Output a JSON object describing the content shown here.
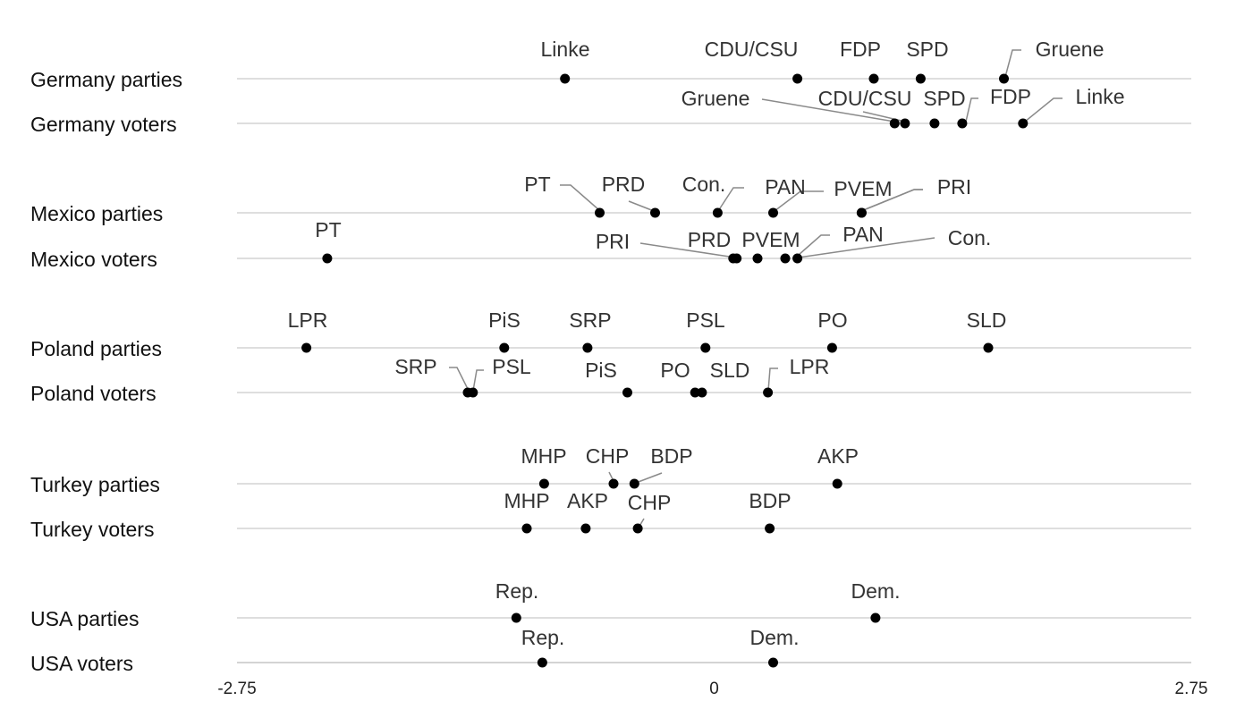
{
  "colors": {
    "line": "#d3d3d3",
    "point": "#000000",
    "leader": "#8a8a8a"
  },
  "chart_data": {
    "type": "scatter",
    "title": "",
    "xlabel": "",
    "ylabel": "",
    "xlim": [
      -2.75,
      2.75
    ],
    "xticks": [
      "-2.75",
      "0",
      "2.75"
    ],
    "grid": "horizontal baseline per row",
    "legend": "none",
    "rows": [
      {
        "label": "Germany parties",
        "points": [
          {
            "name": "Linke",
            "x": -0.86
          },
          {
            "name": "CDU/CSU",
            "x": 0.48
          },
          {
            "name": "FDP",
            "x": 0.92
          },
          {
            "name": "SPD",
            "x": 1.19
          },
          {
            "name": "Gruene",
            "x": 1.67
          }
        ]
      },
      {
        "label": "Germany voters",
        "points": [
          {
            "name": "Gruene",
            "x": 1.04
          },
          {
            "name": "CDU/CSU",
            "x": 1.1
          },
          {
            "name": "SPD",
            "x": 1.27
          },
          {
            "name": "FDP",
            "x": 1.43
          },
          {
            "name": "Linke",
            "x": 1.78
          }
        ]
      },
      {
        "label": "Mexico parties",
        "points": [
          {
            "name": "PT",
            "x": -0.66
          },
          {
            "name": "PRD",
            "x": -0.34
          },
          {
            "name": "Con.",
            "x": 0.02
          },
          {
            "name": "PAN",
            "x": 0.34
          },
          {
            "name": "PVEM",
            "x": 0.85
          },
          {
            "name": "PRI",
            "x": 0.85
          }
        ]
      },
      {
        "label": "Mexico voters",
        "points": [
          {
            "name": "PT",
            "x": -2.23
          },
          {
            "name": "PRI",
            "x": 0.11
          },
          {
            "name": "PRD",
            "x": 0.13
          },
          {
            "name": "PVEM",
            "x": 0.25
          },
          {
            "name": "PAN",
            "x": 0.41
          },
          {
            "name": "Con.",
            "x": 0.48
          }
        ]
      },
      {
        "label": "Poland parties",
        "points": [
          {
            "name": "LPR",
            "x": -2.35
          },
          {
            "name": "PiS",
            "x": -1.21
          },
          {
            "name": "SRP",
            "x": -0.73
          },
          {
            "name": "PSL",
            "x": -0.05
          },
          {
            "name": "PO",
            "x": 0.68
          },
          {
            "name": "SLD",
            "x": 1.58
          }
        ]
      },
      {
        "label": "Poland voters",
        "points": [
          {
            "name": "SRP",
            "x": -1.42
          },
          {
            "name": "PSL",
            "x": -1.39
          },
          {
            "name": "PiS",
            "x": -0.5
          },
          {
            "name": "PO",
            "x": -0.11
          },
          {
            "name": "SLD",
            "x": -0.07
          },
          {
            "name": "LPR",
            "x": 0.31
          }
        ]
      },
      {
        "label": "Turkey parties",
        "points": [
          {
            "name": "MHP",
            "x": -0.98
          },
          {
            "name": "CHP",
            "x": -0.58
          },
          {
            "name": "BDP",
            "x": -0.46
          },
          {
            "name": "AKP",
            "x": 0.71
          }
        ]
      },
      {
        "label": "Turkey voters",
        "points": [
          {
            "name": "MHP",
            "x": -1.08
          },
          {
            "name": "AKP",
            "x": -0.74
          },
          {
            "name": "CHP",
            "x": -0.44
          },
          {
            "name": "BDP",
            "x": 0.32
          }
        ]
      },
      {
        "label": "USA parties",
        "points": [
          {
            "name": "Rep.",
            "x": -1.14
          },
          {
            "name": "Dem.",
            "x": 0.93
          }
        ]
      },
      {
        "label": "USA voters",
        "points": [
          {
            "name": "Rep.",
            "x": -0.99
          },
          {
            "name": "Dem.",
            "x": 0.34
          }
        ]
      }
    ]
  }
}
